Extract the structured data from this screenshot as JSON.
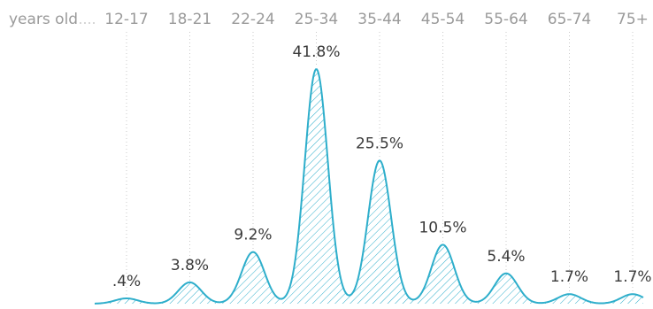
{
  "chart_data": {
    "type": "area",
    "axis_prefix": "years old",
    "categories": [
      "12-17",
      "18-21",
      "22-24",
      "25-34",
      "35-44",
      "45-54",
      "55-64",
      "65-74",
      "75+"
    ],
    "values": [
      0.4,
      3.8,
      9.2,
      41.8,
      25.5,
      10.5,
      5.4,
      1.7,
      1.7
    ],
    "value_labels": [
      ".4%",
      "3.8%",
      "9.2%",
      "41.8%",
      "25.5%",
      "10.5%",
      "5.4%",
      "1.7%",
      "1.7%"
    ],
    "unit": "%",
    "ylim": [
      0,
      41.8
    ],
    "grid": false,
    "legend": "none",
    "colors": {
      "line": "#2eaecb",
      "hatch": "#2eaecb",
      "category_text": "#9a9a9a",
      "value_text": "#3a3a3a",
      "guide": "#c9c9c9"
    }
  }
}
